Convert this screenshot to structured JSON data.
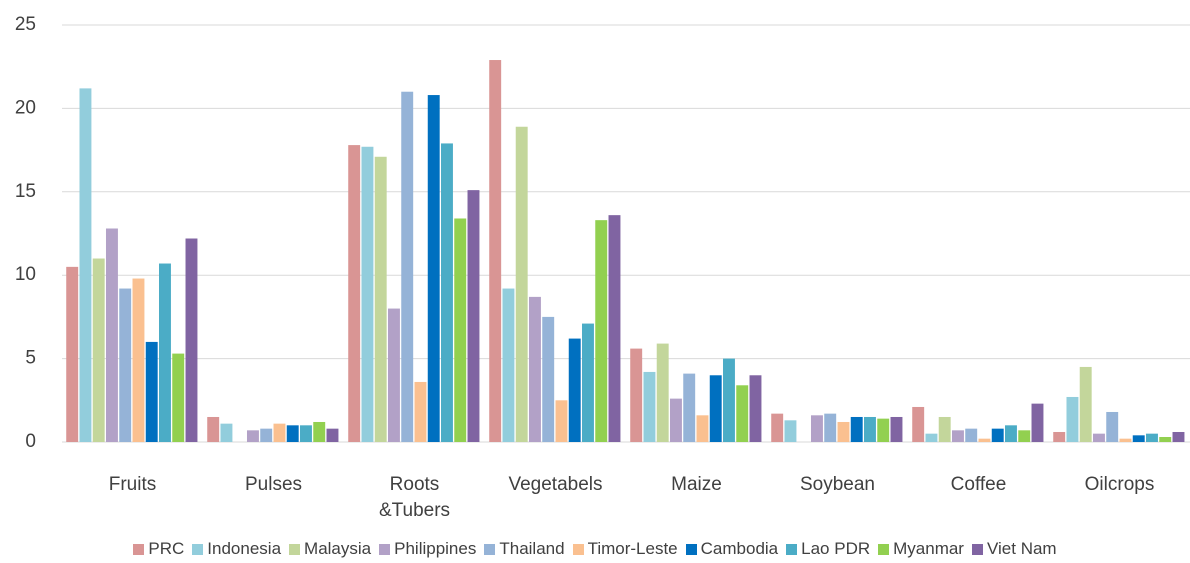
{
  "chart_data": {
    "type": "bar",
    "categories": [
      "Fruits",
      "Pulses",
      "Roots &Tubers",
      "Vegetabels",
      "Maize",
      "Soybean",
      "Coffee",
      "Oilcrops"
    ],
    "series": [
      {
        "name": "PRC",
        "color": "#d99594",
        "values": [
          10.5,
          1.5,
          17.8,
          22.9,
          5.6,
          1.7,
          2.1,
          0.6
        ]
      },
      {
        "name": "Indonesia",
        "color": "#92cddc",
        "values": [
          21.2,
          1.1,
          17.7,
          9.2,
          4.2,
          1.3,
          0.5,
          2.7
        ]
      },
      {
        "name": "Malaysia",
        "color": "#c3d69b",
        "values": [
          11.0,
          0,
          17.1,
          18.9,
          5.9,
          0,
          1.5,
          4.5
        ]
      },
      {
        "name": "Philippines",
        "color": "#b2a1c7",
        "values": [
          12.8,
          0.7,
          8.0,
          8.7,
          2.6,
          1.6,
          0.7,
          0.5
        ]
      },
      {
        "name": "Thailand",
        "color": "#95b3d7",
        "values": [
          9.2,
          0.8,
          21.0,
          7.5,
          4.1,
          1.7,
          0.8,
          1.8
        ]
      },
      {
        "name": "Timor-Leste",
        "color": "#fac090",
        "values": [
          9.8,
          1.1,
          3.6,
          2.5,
          1.6,
          1.2,
          0.2,
          0.2
        ]
      },
      {
        "name": "Cambodia",
        "color": "#0070c0",
        "values": [
          6.0,
          1.0,
          20.8,
          6.2,
          4.0,
          1.5,
          0.8,
          0.4
        ]
      },
      {
        "name": "Lao PDR",
        "color": "#4bacc6",
        "values": [
          10.7,
          1.0,
          17.9,
          7.1,
          5.0,
          1.5,
          1.0,
          0.5
        ]
      },
      {
        "name": "Myanmar",
        "color": "#92d050",
        "values": [
          5.3,
          1.2,
          13.4,
          13.3,
          3.4,
          1.4,
          0.7,
          0.3
        ]
      },
      {
        "name": "Viet Nam",
        "color": "#8064a2",
        "values": [
          12.2,
          0.8,
          15.1,
          13.6,
          4.0,
          1.5,
          2.3,
          0.6
        ]
      }
    ],
    "ylim": [
      0,
      25
    ],
    "yticks": [
      0,
      5,
      10,
      15,
      20,
      25
    ],
    "grid": true
  }
}
